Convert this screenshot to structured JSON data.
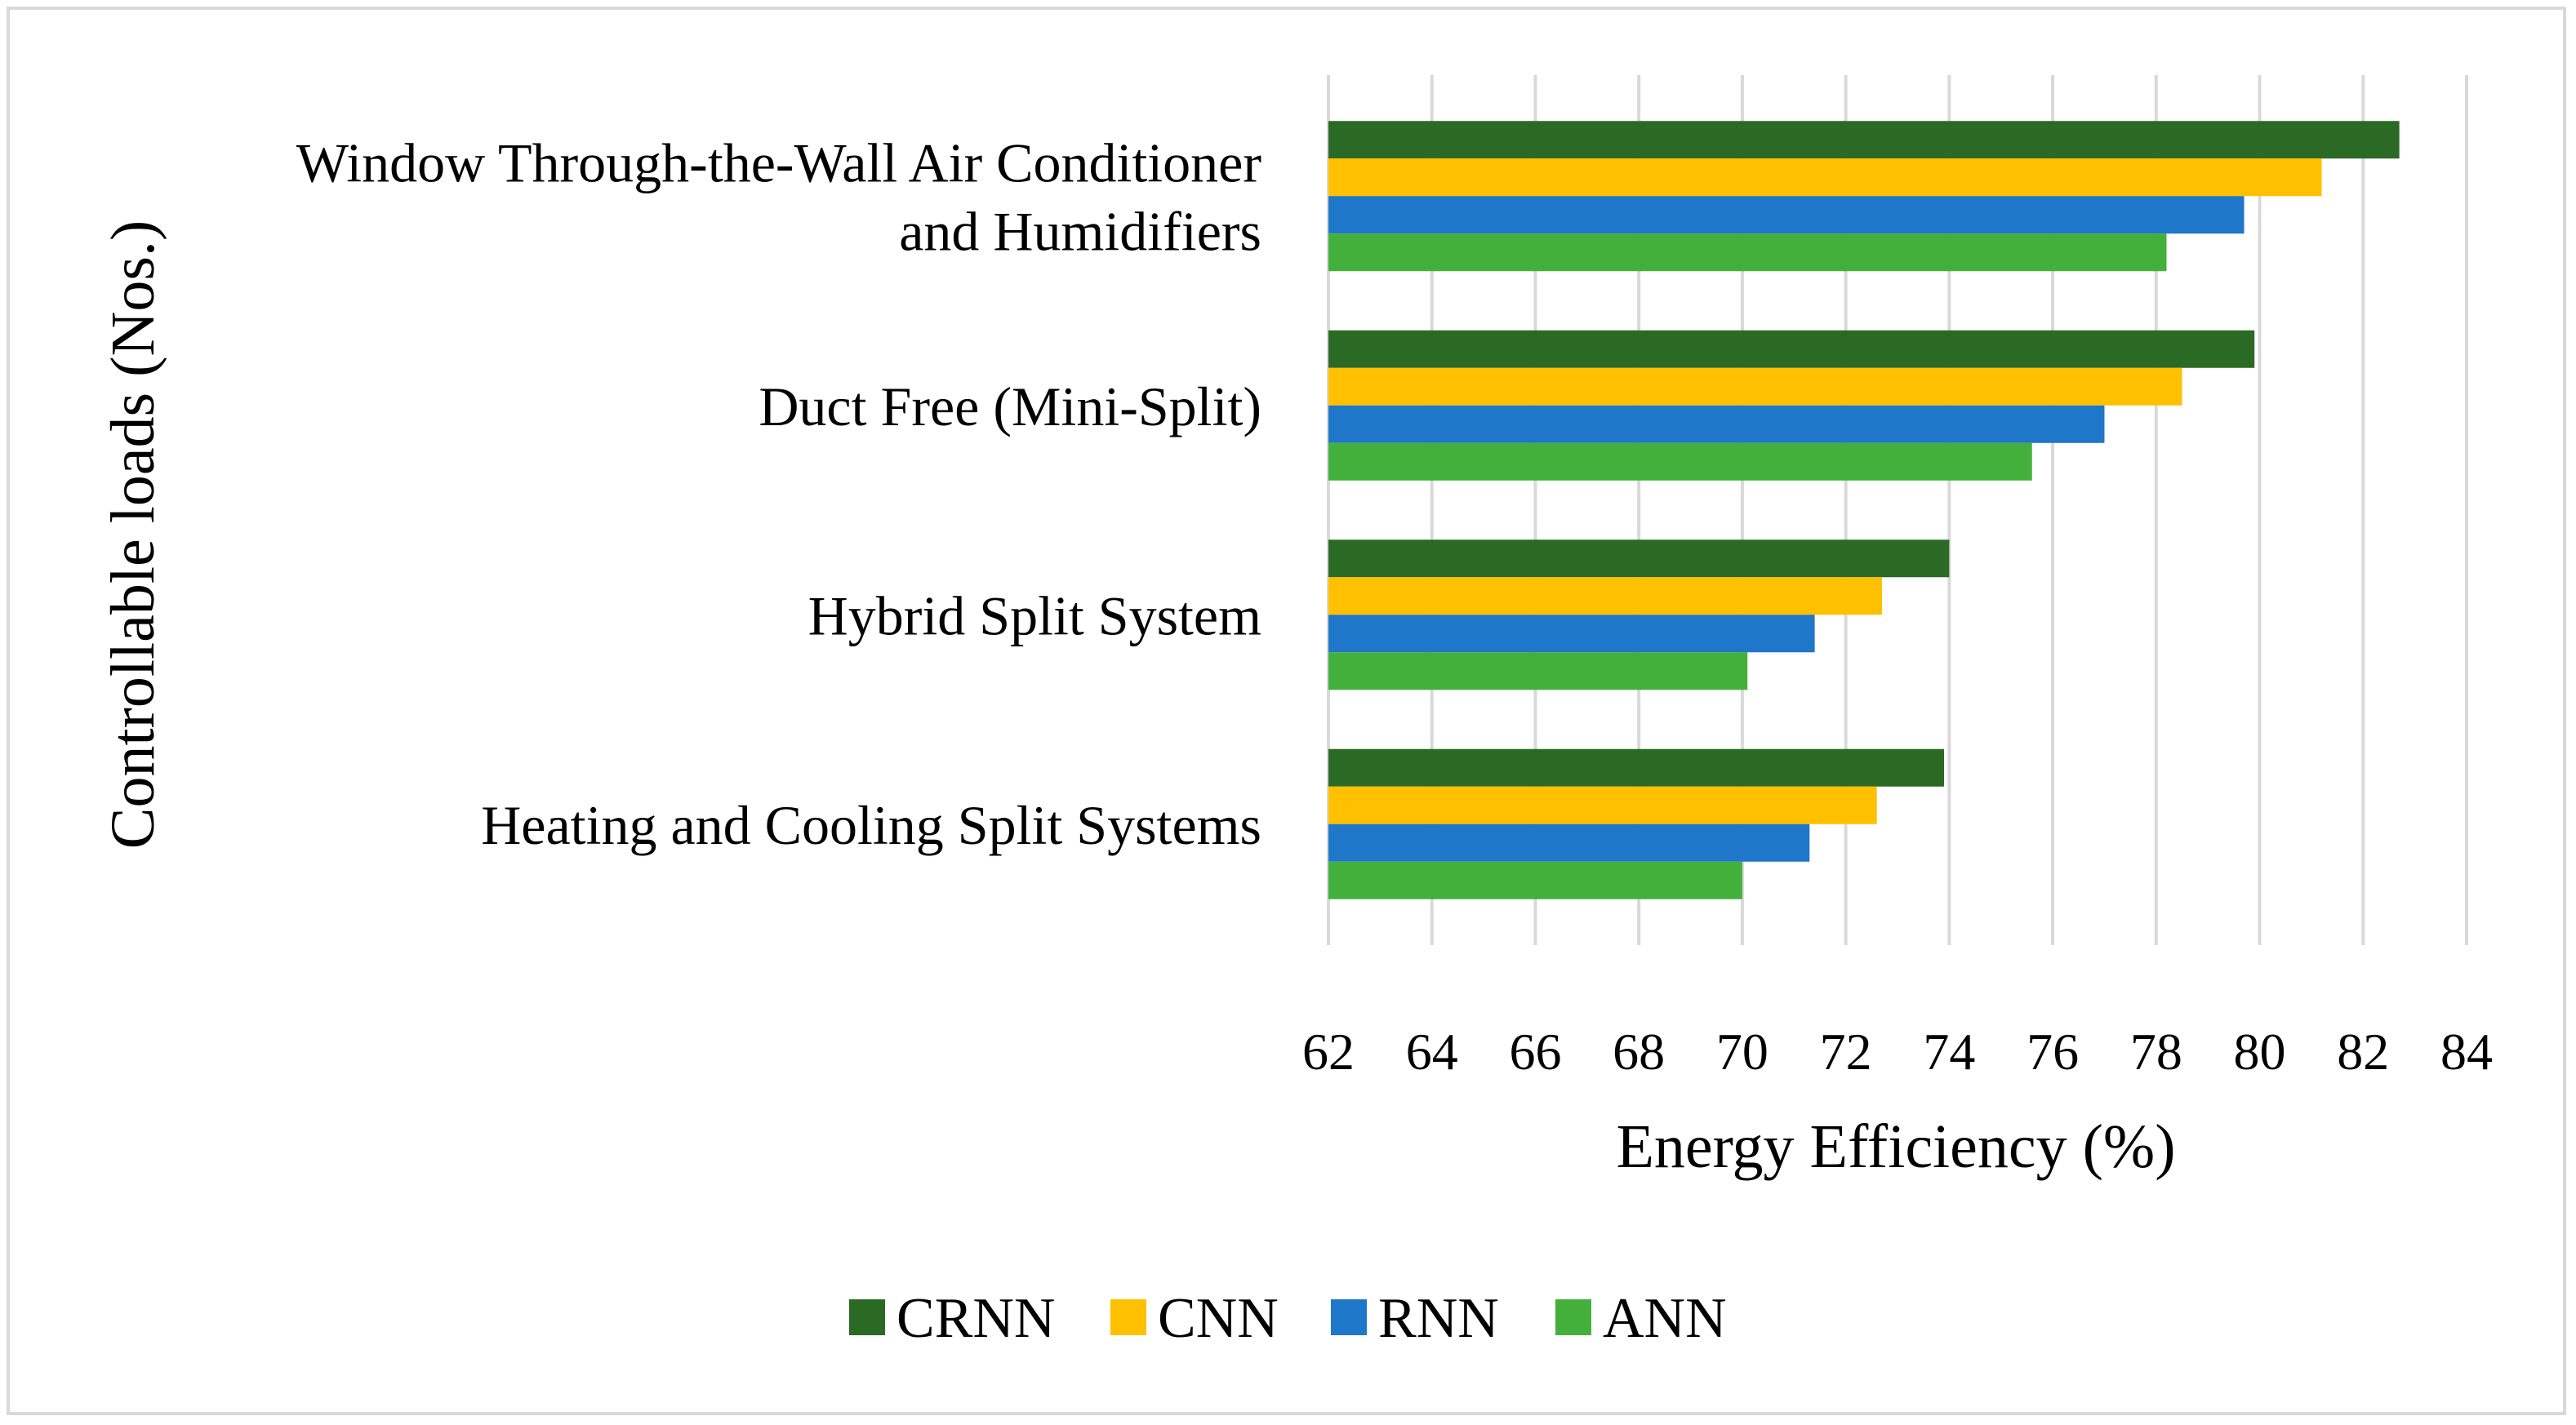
{
  "chart_data": {
    "type": "bar",
    "orientation": "horizontal",
    "categories": [
      [
        "Window Through-the-Wall Air Conditioner",
        "and Humidifiers"
      ],
      [
        "Duct Free (Mini-Split)"
      ],
      [
        "Hybrid Split System"
      ],
      [
        "Heating and Cooling Split Systems"
      ]
    ],
    "series": [
      {
        "name": "CRNN",
        "color": "#2b6a24",
        "values": [
          82.7,
          79.9,
          74.0,
          73.9
        ]
      },
      {
        "name": "CNN",
        "color": "#ffc000",
        "values": [
          81.2,
          78.5,
          72.7,
          72.6
        ]
      },
      {
        "name": "RNN",
        "color": "#1f77c9",
        "values": [
          79.7,
          77.0,
          71.4,
          71.3
        ]
      },
      {
        "name": "ANN",
        "color": "#44b03c",
        "values": [
          78.2,
          75.6,
          70.1,
          70.0
        ]
      }
    ],
    "xlabel": "Energy Efficiency (%)",
    "ylabel": "Controllable loads (Nos.)",
    "xlim": [
      62,
      84
    ],
    "xticks": [
      62,
      64,
      66,
      68,
      70,
      72,
      74,
      76,
      78,
      80,
      82,
      84
    ],
    "grid": "vertical",
    "legend_position": "bottom"
  }
}
